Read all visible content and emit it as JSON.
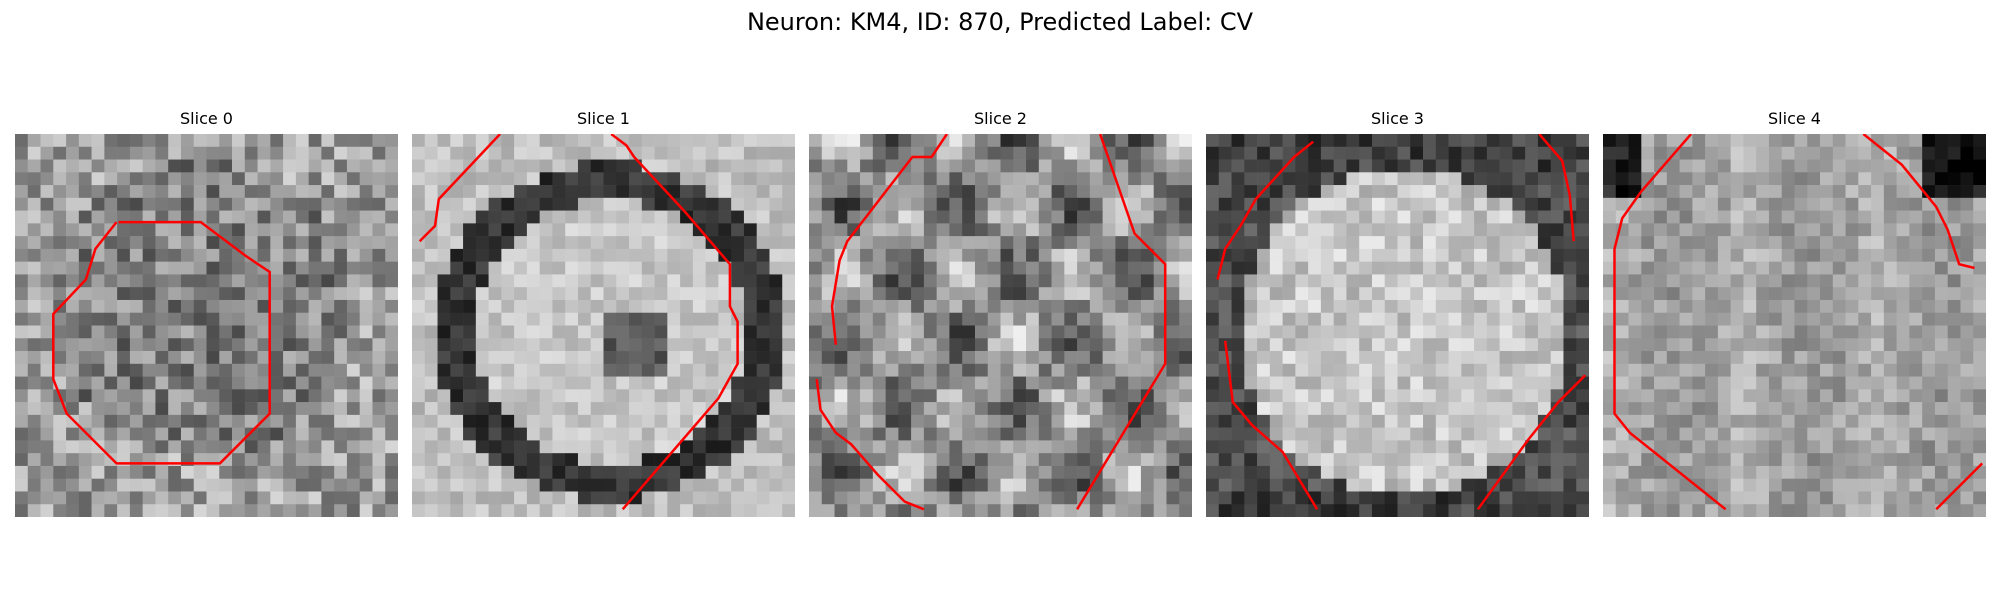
{
  "figure": {
    "title": "Neuron: KM4, ID: 870, Predicted Label: CV",
    "contour_color": "#ff0000",
    "colormap": "gray",
    "panels": [
      {
        "title": "Slice 0"
      },
      {
        "title": "Slice 1"
      },
      {
        "title": "Slice 2"
      },
      {
        "title": "Slice 3"
      },
      {
        "title": "Slice 4"
      }
    ]
  }
}
